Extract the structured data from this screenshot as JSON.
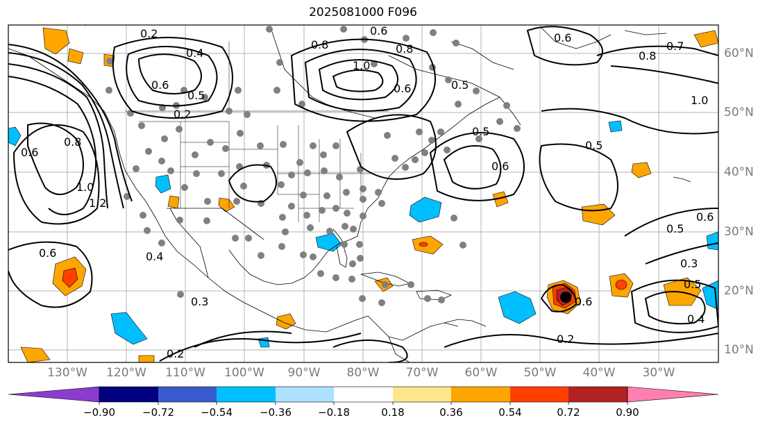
{
  "title": "2025081000 F096",
  "longitude_labels": [
    "130°W",
    "120°W",
    "110°W",
    "100°W",
    "90°W",
    "80°W",
    "70°W",
    "60°W",
    "50°W",
    "40°W",
    "30°W"
  ],
  "latitude_labels": [
    "60°N",
    "50°N",
    "40°N",
    "30°N",
    "20°N",
    "10°N"
  ],
  "contour_labels": [
    "0.2",
    "0.4",
    "0.6",
    "0.5",
    "0.2",
    "0.6",
    "0.8",
    "1.0",
    "0.8",
    "0.6",
    "0.5",
    "0.6",
    "0.5",
    "0.6",
    "0.7",
    "0.8",
    "1.0",
    "0.5",
    "0.5",
    "0.6",
    "0.3",
    "0.5",
    "0.4",
    "0.6",
    "0.2",
    "0.3",
    "0.2",
    "0.4",
    "0.6",
    "0.8",
    "1.0",
    "1.2"
  ],
  "colorbar": {
    "ticks": [
      "−0.90",
      "−0.72",
      "−0.54",
      "−0.36",
      "−0.18",
      "0.18",
      "0.36",
      "0.54",
      "0.72",
      "0.90"
    ],
    "colors": [
      "#8a3ccf",
      "#000080",
      "#3a5bd0",
      "#00bfff",
      "#aee0ff",
      "#ffffff",
      "#ffe68a",
      "#ffa500",
      "#ff4000",
      "#b22222",
      "#ff80b0"
    ]
  },
  "colors": {
    "land_outline": "#000000",
    "contour": "#000000",
    "station_dot": "#808080",
    "grid": "#9a9a9a"
  }
}
